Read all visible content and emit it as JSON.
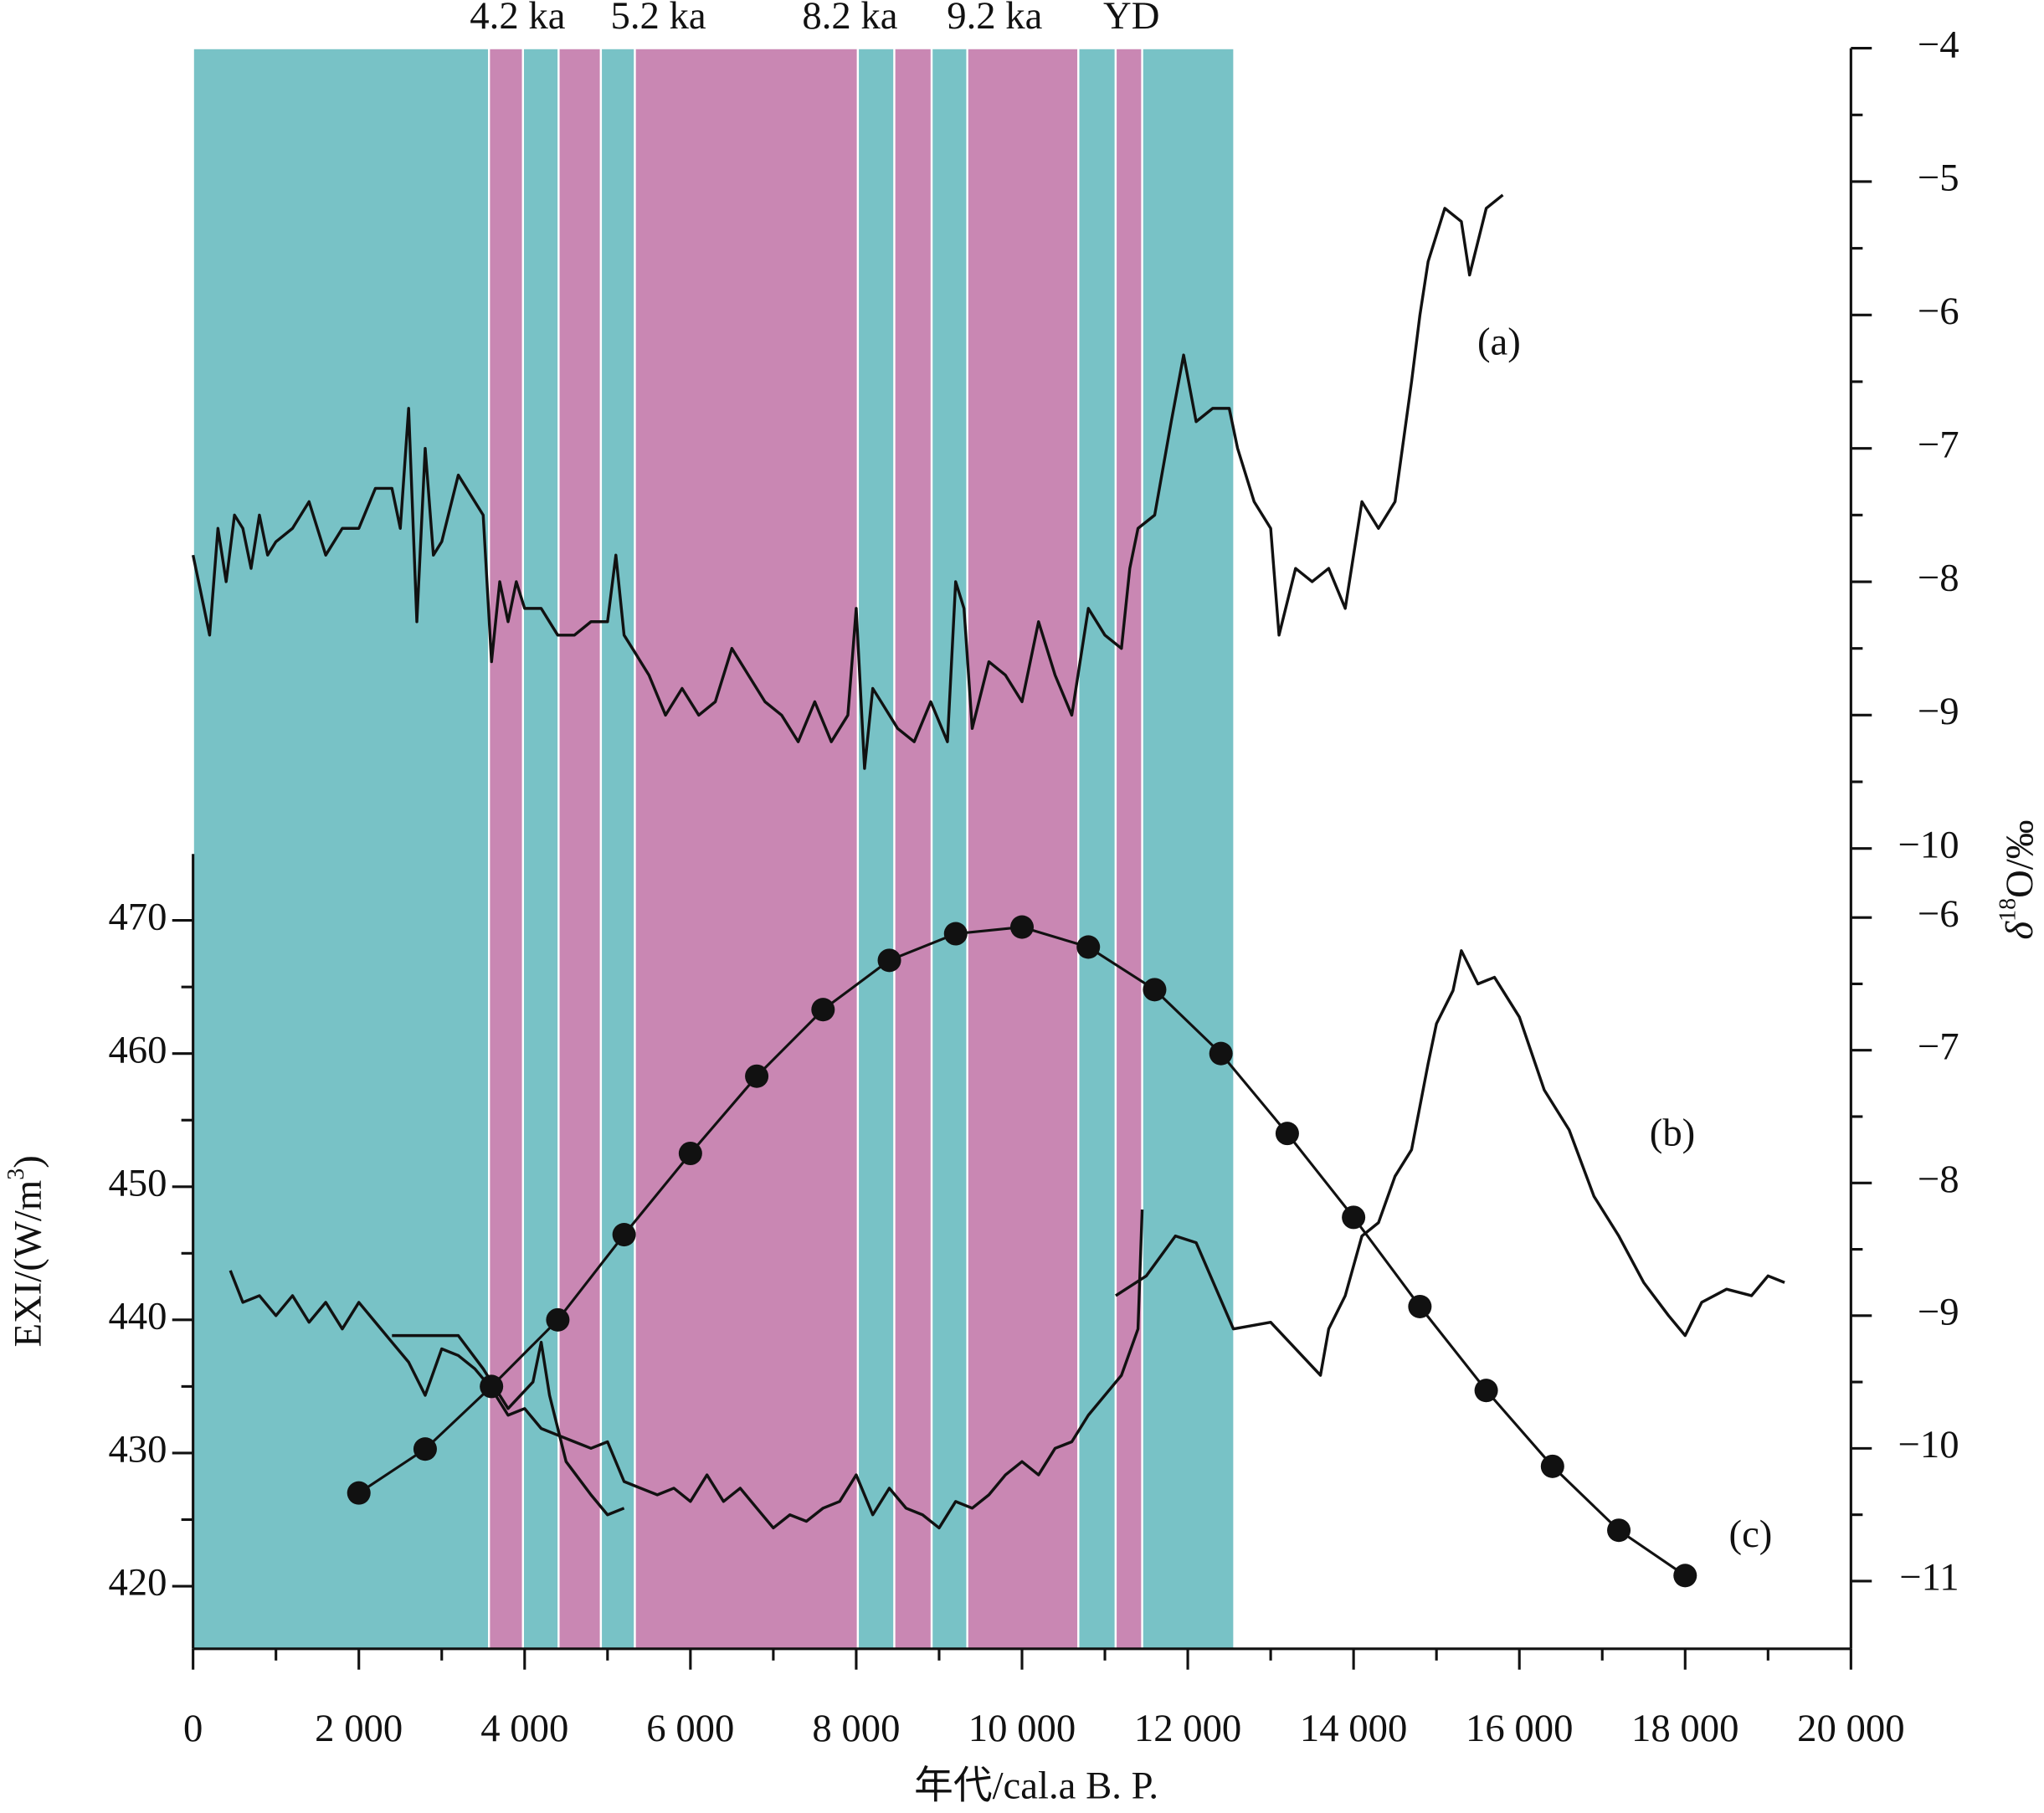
{
  "chart_data": {
    "type": "line",
    "xlabel": "年代/cal.a B. P.",
    "ylabel": [
      "EXI/(W/m",
      "3",
      ")"
    ],
    "y2label": [
      "δ",
      "18",
      "O/‰"
    ],
    "xlim": [
      0,
      20000
    ],
    "xticks": [
      0,
      {
        "value": 2000,
        "label": "2 000"
      },
      {
        "value": 4000,
        "label": "4 000"
      },
      {
        "value": 6000,
        "label": "6 000"
      },
      {
        "value": 8000,
        "label": "8 000"
      },
      {
        "value": 10000,
        "label": "10 000"
      },
      {
        "value": 12000,
        "label": "12 000"
      },
      {
        "value": 14000,
        "label": "14 000"
      },
      {
        "value": 16000,
        "label": "16 000"
      },
      {
        "value": 18000,
        "label": "18 000"
      },
      {
        "value": 20000,
        "label": "20 000"
      }
    ],
    "ylim": [
      415.3,
      535.5
    ],
    "yticks": [
      420,
      430,
      440,
      450,
      460,
      470
    ],
    "y2lim": [
      -16,
      -4
    ],
    "y2ticks": [
      {
        "value": -4,
        "label": "−4"
      },
      {
        "value": -5,
        "label": "−5"
      },
      {
        "value": -6,
        "label": "−6"
      },
      {
        "value": -7,
        "label": "−7"
      },
      {
        "value": -8,
        "label": "−8"
      },
      {
        "value": -9,
        "label": "−9"
      },
      {
        "value": -10,
        "label": "−10"
      }
    ],
    "y3lim": [
      -11.51,
      0.55
    ],
    "y3ticks": [
      {
        "value": -6,
        "label": "−6"
      },
      {
        "value": -7,
        "label": "−7"
      },
      {
        "value": -8,
        "label": "−8"
      },
      {
        "value": -9,
        "label": "−9"
      },
      {
        "value": -10,
        "label": "−10"
      },
      {
        "value": -11,
        "label": "−11"
      }
    ],
    "band_labels": [
      "4.2 ka",
      "5.2 ka",
      "8.2 ka",
      "9.2 ka",
      "YD"
    ],
    "annotations": [
      "(a)",
      "(b)",
      "(c)"
    ],
    "bands": [
      {
        "start": 0,
        "end": 3570,
        "color": "#78c2c6"
      },
      {
        "start": 3570,
        "end": 3980,
        "color": "#c987b3"
      },
      {
        "start": 3980,
        "end": 4410,
        "color": "#78c2c6"
      },
      {
        "start": 4410,
        "end": 4920,
        "color": "#c987b3"
      },
      {
        "start": 4920,
        "end": 5330,
        "color": "#78c2c6"
      },
      {
        "start": 5330,
        "end": 8020,
        "color": "#c987b3"
      },
      {
        "start": 8020,
        "end": 8460,
        "color": "#78c2c6"
      },
      {
        "start": 8460,
        "end": 8910,
        "color": "#c987b3"
      },
      {
        "start": 8910,
        "end": 9340,
        "color": "#78c2c6"
      },
      {
        "start": 9340,
        "end": 10680,
        "color": "#c987b3"
      },
      {
        "start": 10680,
        "end": 11130,
        "color": "#78c2c6"
      },
      {
        "start": 11130,
        "end": 11450,
        "color": "#c987b3"
      },
      {
        "start": 11450,
        "end": 12560,
        "color": "#78c2c6"
      }
    ],
    "series": [
      {
        "color": "#111111",
        "axis": "y2",
        "x": [
          0,
          100,
          200,
          300,
          400,
          500,
          600,
          700,
          800,
          900,
          1000,
          1200,
          1400,
          1600,
          1800,
          2000,
          2200,
          2400,
          2500,
          2600,
          2700,
          2800,
          2900,
          3000,
          3200,
          3400,
          3500,
          3600,
          3700,
          3800,
          3900,
          4000,
          4200,
          4400,
          4600,
          4800,
          5000,
          5100,
          5200,
          5300,
          5500,
          5700,
          5900,
          6100,
          6300,
          6500,
          6700,
          6900,
          7100,
          7300,
          7500,
          7700,
          7900,
          8000,
          8100,
          8200,
          8300,
          8500,
          8700,
          8900,
          9100,
          9200,
          9300,
          9400,
          9600,
          9800,
          10000,
          10200,
          10400,
          10600,
          10800,
          11000,
          11200,
          11300,
          11400,
          11600,
          11800,
          11950,
          12100,
          12300,
          12500,
          12600,
          12800,
          13000,
          13100,
          13300,
          13500,
          13700,
          13900,
          14100,
          14300,
          14500,
          14700,
          14800,
          14900,
          15100,
          15300,
          15400,
          15600,
          15800
        ],
        "values": [
          -7.8,
          -8.1,
          -8.4,
          -7.6,
          -8.0,
          -7.5,
          -7.6,
          -7.9,
          -7.5,
          -7.8,
          -7.7,
          -7.6,
          -7.4,
          -7.8,
          -7.6,
          -7.6,
          -7.3,
          -7.3,
          -7.6,
          -6.7,
          -8.3,
          -7.0,
          -7.8,
          -7.7,
          -7.2,
          -7.4,
          -7.5,
          -8.6,
          -8.0,
          -8.3,
          -8.0,
          -8.2,
          -8.2,
          -8.4,
          -8.4,
          -8.3,
          -8.3,
          -7.8,
          -8.4,
          -8.5,
          -8.7,
          -9.0,
          -8.8,
          -9.0,
          -8.9,
          -8.5,
          -8.7,
          -8.9,
          -9.0,
          -9.2,
          -8.9,
          -9.2,
          -9.0,
          -8.2,
          -9.4,
          -8.8,
          -8.9,
          -9.1,
          -9.2,
          -8.9,
          -9.2,
          -8.0,
          -8.2,
          -9.1,
          -8.6,
          -8.7,
          -8.9,
          -8.3,
          -8.7,
          -9.0,
          -8.2,
          -8.4,
          -8.5,
          -7.9,
          -7.6,
          -7.5,
          -6.8,
          -6.3,
          -6.8,
          -6.7,
          -6.7,
          -7.0,
          -7.4,
          -7.6,
          -8.4,
          -7.9,
          -8.0,
          -7.9,
          -8.2,
          -7.4,
          -7.6,
          -7.4,
          -6.5,
          -6.0,
          -5.6,
          -5.2,
          -5.3,
          -5.7,
          -5.2,
          -5.1
        ]
      },
      {
        "color": "#111111",
        "axis": "y3",
        "x": [
          450,
          600,
          800,
          1000,
          1200,
          1400,
          1600,
          1800,
          2000,
          2200,
          2400,
          2600,
          2800,
          3000,
          3200,
          3400,
          3600,
          3800,
          4000,
          4200,
          4400,
          4600,
          4800,
          5000,
          5200,
          5400,
          5600,
          5800,
          6000,
          6200,
          6400,
          6600,
          6800,
          7000,
          7200,
          7400,
          7600,
          7800,
          8000,
          8200,
          8400,
          8600,
          8800,
          9000,
          9200,
          9400,
          9600,
          9800,
          10000,
          10200,
          10400,
          10600,
          10800,
          11000,
          11200,
          11400,
          11450
        ],
        "values": [
          -8.66,
          -8.9,
          -8.85,
          -9.0,
          -8.85,
          -9.05,
          -8.9,
          -9.1,
          -8.9,
          -9.05,
          -9.2,
          -9.35,
          -9.6,
          -9.25,
          -9.3,
          -9.4,
          -9.55,
          -9.75,
          -9.7,
          -9.85,
          -9.9,
          -9.95,
          -10.0,
          -9.95,
          -10.25,
          -10.3,
          -10.35,
          -10.3,
          -10.4,
          -10.2,
          -10.4,
          -10.3,
          -10.45,
          -10.6,
          -10.5,
          -10.55,
          -10.45,
          -10.4,
          -10.2,
          -10.5,
          -10.3,
          -10.45,
          -10.5,
          -10.6,
          -10.4,
          -10.45,
          -10.35,
          -10.2,
          -10.1,
          -10.2,
          -10.0,
          -9.95,
          -9.75,
          -9.6,
          -9.45,
          -9.1,
          -8.2
        ]
      },
      {
        "color": "#111111",
        "axis": "y3",
        "x": [
          2400,
          3200,
          3500,
          3800,
          4100,
          4200,
          4300,
          4500,
          4800,
          5000,
          5200
        ],
        "values": [
          -9.15,
          -9.15,
          -9.4,
          -9.7,
          -9.5,
          -9.2,
          -9.6,
          -10.1,
          -10.35,
          -10.5,
          -10.45
        ]
      },
      {
        "color": "#111111",
        "axis": "y3",
        "x": [
          11130,
          11500,
          11850,
          12100,
          12550,
          13000,
          13600,
          13700,
          13900,
          14100,
          14300,
          14500,
          14700,
          14900,
          15000,
          15200,
          15300,
          15500,
          15700,
          16000,
          16300,
          16600,
          16900,
          17200,
          17500,
          17800,
          18000,
          18200,
          18500,
          18800,
          19000,
          19200
        ],
        "values": [
          -8.85,
          -8.7,
          -8.4,
          -8.45,
          -9.1,
          -9.05,
          -9.45,
          -9.1,
          -8.85,
          -8.4,
          -8.3,
          -7.95,
          -7.75,
          -7.1,
          -6.8,
          -6.55,
          -6.25,
          -6.5,
          -6.45,
          -6.75,
          -7.3,
          -7.6,
          -8.1,
          -8.4,
          -8.75,
          -9.0,
          -9.15,
          -8.9,
          -8.8,
          -8.85,
          -8.7,
          -8.75
        ]
      },
      {
        "color": "#111111",
        "marker": "circle",
        "x": [
          2000,
          2800,
          3600,
          4400,
          5200,
          6000,
          6800,
          7600,
          8400,
          9200,
          10000,
          10800,
          11600,
          12400,
          13200,
          14000,
          14800,
          15600,
          16400,
          17200,
          18000
        ],
        "values": [
          427,
          430.3,
          435,
          440,
          446.4,
          452.5,
          458.3,
          463.3,
          467,
          469,
          469.5,
          468,
          464.8,
          460,
          454,
          447.7,
          441,
          434.7,
          429,
          424.2,
          420.8
        ]
      }
    ]
  }
}
